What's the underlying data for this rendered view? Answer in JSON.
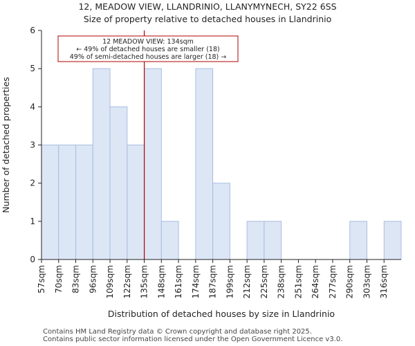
{
  "header": {
    "title": "12, MEADOW VIEW, LLANDRINIO, LLANYMYNECH, SY22 6SS",
    "subtitle": "Size of property relative to detached houses in Llandrinio"
  },
  "chart_data": {
    "type": "bar",
    "categories": [
      "57sqm",
      "70sqm",
      "83sqm",
      "96sqm",
      "109sqm",
      "122sqm",
      "135sqm",
      "148sqm",
      "161sqm",
      "174sqm",
      "187sqm",
      "199sqm",
      "212sqm",
      "225sqm",
      "238sqm",
      "251sqm",
      "264sqm",
      "277sqm",
      "290sqm",
      "303sqm",
      "316sqm"
    ],
    "values": [
      3,
      3,
      3,
      5,
      4,
      3,
      5,
      1,
      0,
      5,
      2,
      0,
      1,
      1,
      0,
      0,
      0,
      0,
      1,
      0,
      1
    ],
    "xlabel": "Distribution of detached houses by size in Llandrinio",
    "ylabel": "Number of detached properties",
    "ylim": [
      0,
      6
    ],
    "yticks": [
      "0",
      "1",
      "2",
      "3",
      "4",
      "5",
      "6"
    ],
    "marker": {
      "value_bin_position": 6.0,
      "line1": "12 MEADOW VIEW: 134sqm",
      "line2": "← 49% of detached houses are smaller (18)",
      "line3": "49% of semi-detached houses are larger (18) →"
    },
    "colors": {
      "bar_fill": "#dce6f5",
      "bar_stroke": "#aabde0",
      "marker_line": "#b00000",
      "axis": "#222222"
    }
  },
  "footer": {
    "line1": "Contains HM Land Registry data © Crown copyright and database right 2025.",
    "line2": "Contains public sector information licensed under the Open Government Licence v3.0."
  }
}
